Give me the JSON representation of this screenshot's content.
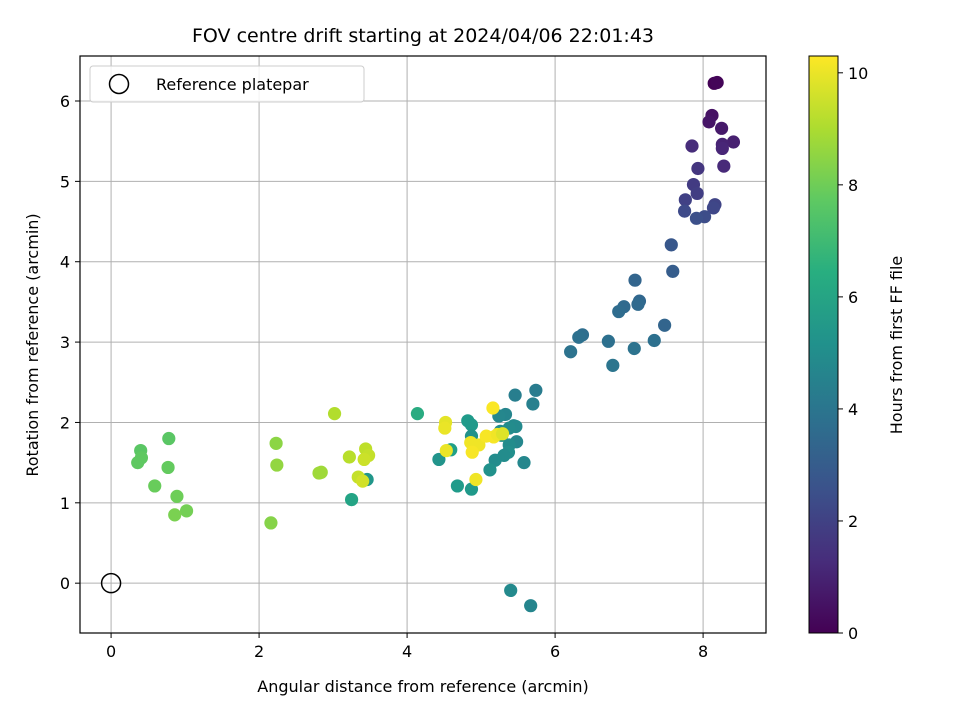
{
  "chart_data": {
    "type": "scatter",
    "title": "FOV centre drift starting at 2024/04/06 22:01:43",
    "xlabel": "Angular distance from reference (arcmin)",
    "ylabel": "Rotation from reference (arcmin)",
    "xlim": [
      -0.42,
      8.85
    ],
    "ylim": [
      -0.62,
      6.56
    ],
    "xticks": [
      "0",
      "2",
      "4",
      "6",
      "8"
    ],
    "yticks": [
      "0",
      "1",
      "2",
      "3",
      "4",
      "5",
      "6"
    ],
    "grid": true,
    "legend": {
      "position": "top-left",
      "entries": [
        {
          "label": "Reference platepar",
          "marker": "open-circle",
          "x": 0,
          "y": 0
        }
      ]
    },
    "colorbar": {
      "label": "Hours from first FF file",
      "range": [
        0,
        10.3
      ],
      "ticks": [
        "0",
        "2",
        "4",
        "6",
        "8",
        "10"
      ],
      "colormap": "viridis"
    },
    "points": [
      {
        "x": 8.15,
        "y": 6.22,
        "h": 0.05
      },
      {
        "x": 8.19,
        "y": 6.23,
        "h": 0.12
      },
      {
        "x": 8.12,
        "y": 5.82,
        "h": 0.5
      },
      {
        "x": 8.08,
        "y": 5.74,
        "h": 0.6
      },
      {
        "x": 8.25,
        "y": 5.66,
        "h": 0.7
      },
      {
        "x": 8.41,
        "y": 5.49,
        "h": 0.9
      },
      {
        "x": 8.26,
        "y": 5.46,
        "h": 1.0
      },
      {
        "x": 8.26,
        "y": 5.41,
        "h": 1.1
      },
      {
        "x": 7.85,
        "y": 5.44,
        "h": 1.3
      },
      {
        "x": 8.28,
        "y": 5.19,
        "h": 1.2
      },
      {
        "x": 7.93,
        "y": 5.16,
        "h": 1.6
      },
      {
        "x": 7.87,
        "y": 4.96,
        "h": 1.8
      },
      {
        "x": 7.92,
        "y": 4.85,
        "h": 1.9
      },
      {
        "x": 7.76,
        "y": 4.77,
        "h": 2.0
      },
      {
        "x": 8.16,
        "y": 4.71,
        "h": 2.1
      },
      {
        "x": 8.14,
        "y": 4.67,
        "h": 2.2
      },
      {
        "x": 7.75,
        "y": 4.63,
        "h": 2.3
      },
      {
        "x": 8.02,
        "y": 4.56,
        "h": 2.4
      },
      {
        "x": 7.91,
        "y": 4.54,
        "h": 2.5
      },
      {
        "x": 7.57,
        "y": 4.21,
        "h": 2.8
      },
      {
        "x": 7.59,
        "y": 3.88,
        "h": 3.0
      },
      {
        "x": 7.08,
        "y": 3.77,
        "h": 3.3
      },
      {
        "x": 7.14,
        "y": 3.51,
        "h": 3.4
      },
      {
        "x": 7.12,
        "y": 3.47,
        "h": 3.5
      },
      {
        "x": 6.93,
        "y": 3.44,
        "h": 3.5
      },
      {
        "x": 6.86,
        "y": 3.38,
        "h": 3.6
      },
      {
        "x": 7.48,
        "y": 3.21,
        "h": 3.3
      },
      {
        "x": 6.37,
        "y": 3.09,
        "h": 3.7
      },
      {
        "x": 6.32,
        "y": 3.06,
        "h": 3.8
      },
      {
        "x": 7.34,
        "y": 3.02,
        "h": 3.8
      },
      {
        "x": 6.72,
        "y": 3.01,
        "h": 3.8
      },
      {
        "x": 7.07,
        "y": 2.92,
        "h": 3.9
      },
      {
        "x": 6.21,
        "y": 2.88,
        "h": 3.9
      },
      {
        "x": 6.78,
        "y": 2.71,
        "h": 4.0
      },
      {
        "x": 5.74,
        "y": 2.4,
        "h": 4.3
      },
      {
        "x": 5.46,
        "y": 2.34,
        "h": 4.4
      },
      {
        "x": 5.7,
        "y": 2.23,
        "h": 4.5
      },
      {
        "x": 5.33,
        "y": 2.1,
        "h": 4.7
      },
      {
        "x": 5.24,
        "y": 2.08,
        "h": 4.8
      },
      {
        "x": 4.82,
        "y": 2.02,
        "h": 5.6
      },
      {
        "x": 4.87,
        "y": 1.97,
        "h": 5.5
      },
      {
        "x": 5.44,
        "y": 1.96,
        "h": 4.9
      },
      {
        "x": 5.47,
        "y": 1.95,
        "h": 4.9
      },
      {
        "x": 5.38,
        "y": 1.93,
        "h": 5.0
      },
      {
        "x": 5.26,
        "y": 1.89,
        "h": 5.0
      },
      {
        "x": 5.28,
        "y": 1.84,
        "h": 5.1
      },
      {
        "x": 4.87,
        "y": 1.83,
        "h": 5.2
      },
      {
        "x": 5.48,
        "y": 1.76,
        "h": 4.8
      },
      {
        "x": 5.38,
        "y": 1.72,
        "h": 5.0
      },
      {
        "x": 5.37,
        "y": 1.63,
        "h": 5.1
      },
      {
        "x": 4.59,
        "y": 1.66,
        "h": 5.8
      },
      {
        "x": 5.31,
        "y": 1.59,
        "h": 5.0
      },
      {
        "x": 4.43,
        "y": 1.54,
        "h": 5.3
      },
      {
        "x": 5.19,
        "y": 1.53,
        "h": 5.0
      },
      {
        "x": 5.58,
        "y": 1.5,
        "h": 4.8
      },
      {
        "x": 5.12,
        "y": 1.41,
        "h": 5.2
      },
      {
        "x": 4.68,
        "y": 1.21,
        "h": 5.6
      },
      {
        "x": 4.87,
        "y": 1.17,
        "h": 5.5
      },
      {
        "x": 4.14,
        "y": 2.11,
        "h": 6.3
      },
      {
        "x": 3.25,
        "y": 1.04,
        "h": 6.0
      },
      {
        "x": 3.46,
        "y": 1.29,
        "h": 5.4
      },
      {
        "x": 5.4,
        "y": -0.09,
        "h": 4.9
      },
      {
        "x": 5.67,
        "y": -0.28,
        "h": 4.7
      },
      {
        "x": 0.4,
        "y": 1.65,
        "h": 7.6
      },
      {
        "x": 0.78,
        "y": 1.8,
        "h": 7.6
      },
      {
        "x": 0.41,
        "y": 1.56,
        "h": 7.7
      },
      {
        "x": 0.36,
        "y": 1.5,
        "h": 7.7
      },
      {
        "x": 0.77,
        "y": 1.44,
        "h": 7.8
      },
      {
        "x": 0.59,
        "y": 1.21,
        "h": 7.9
      },
      {
        "x": 0.89,
        "y": 1.08,
        "h": 8.0
      },
      {
        "x": 1.02,
        "y": 0.9,
        "h": 8.1
      },
      {
        "x": 0.86,
        "y": 0.85,
        "h": 8.2
      },
      {
        "x": 2.16,
        "y": 0.75,
        "h": 8.4
      },
      {
        "x": 2.23,
        "y": 1.74,
        "h": 8.5
      },
      {
        "x": 2.24,
        "y": 1.47,
        "h": 8.6
      },
      {
        "x": 2.81,
        "y": 1.37,
        "h": 8.8
      },
      {
        "x": 2.84,
        "y": 1.38,
        "h": 8.8
      },
      {
        "x": 3.02,
        "y": 2.11,
        "h": 9.1
      },
      {
        "x": 3.22,
        "y": 1.57,
        "h": 9.2
      },
      {
        "x": 3.44,
        "y": 1.67,
        "h": 9.3
      },
      {
        "x": 3.48,
        "y": 1.59,
        "h": 9.4
      },
      {
        "x": 3.42,
        "y": 1.54,
        "h": 9.5
      },
      {
        "x": 3.34,
        "y": 1.32,
        "h": 9.4
      },
      {
        "x": 3.4,
        "y": 1.27,
        "h": 9.6
      },
      {
        "x": 4.52,
        "y": 2.0,
        "h": 9.9
      },
      {
        "x": 4.51,
        "y": 1.93,
        "h": 10.0
      },
      {
        "x": 4.53,
        "y": 1.65,
        "h": 10.0
      },
      {
        "x": 4.86,
        "y": 1.75,
        "h": 10.1
      },
      {
        "x": 4.97,
        "y": 1.72,
        "h": 10.1
      },
      {
        "x": 4.88,
        "y": 1.63,
        "h": 10.2
      },
      {
        "x": 5.07,
        "y": 1.83,
        "h": 10.2
      },
      {
        "x": 5.17,
        "y": 1.82,
        "h": 10.2
      },
      {
        "x": 5.22,
        "y": 1.85,
        "h": 10.1
      },
      {
        "x": 5.29,
        "y": 1.86,
        "h": 9.8
      },
      {
        "x": 5.16,
        "y": 2.18,
        "h": 10.25
      },
      {
        "x": 4.93,
        "y": 1.29,
        "h": 10.1
      }
    ]
  }
}
